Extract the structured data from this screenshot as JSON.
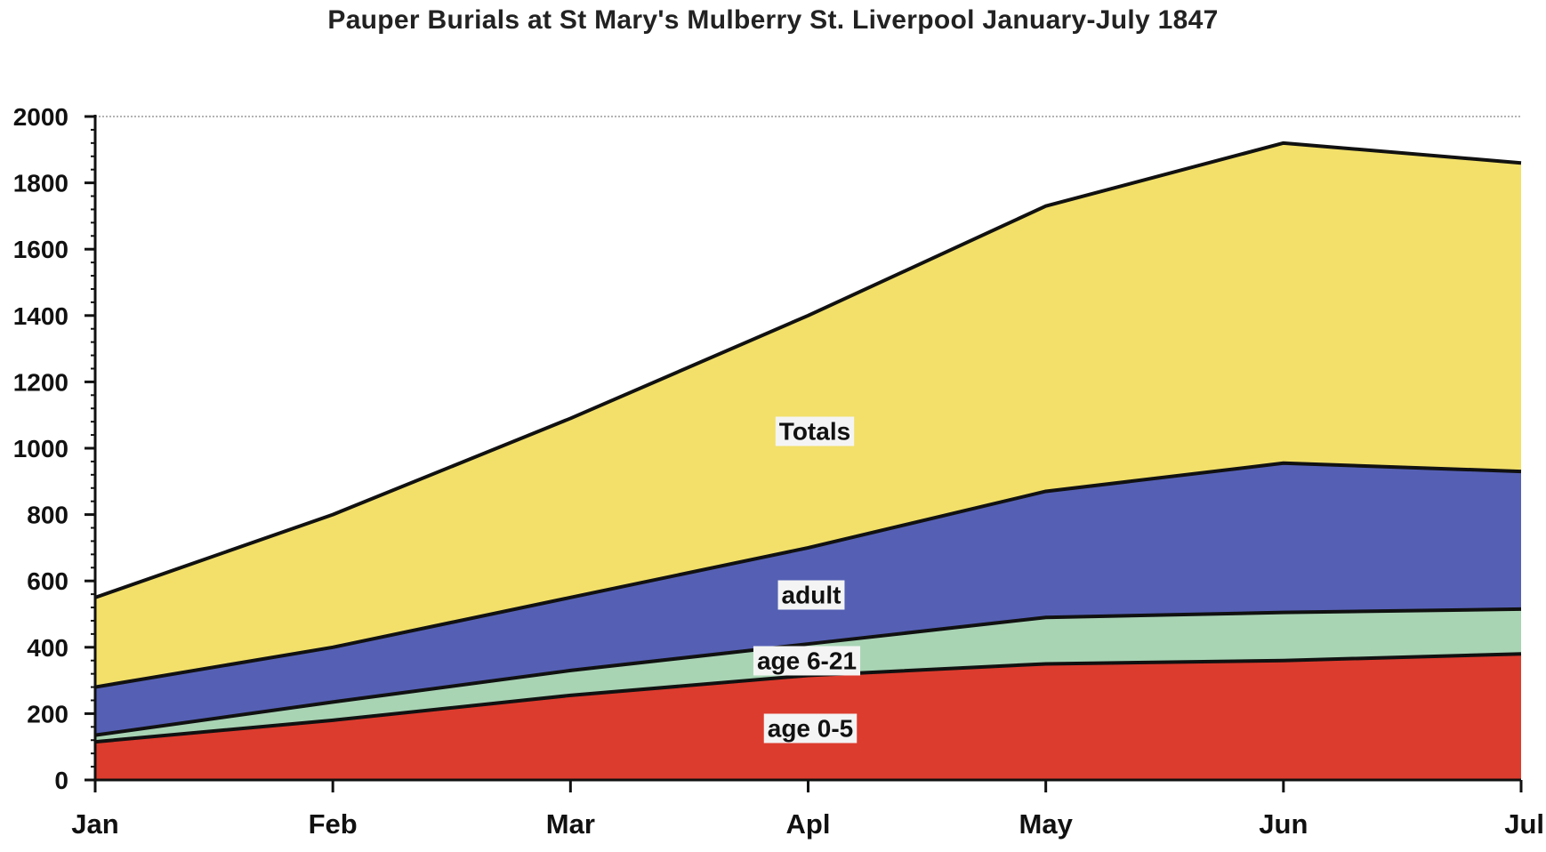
{
  "chart_data": {
    "type": "area",
    "stacked": false,
    "title": "Pauper Burials at St Mary's Mulberry St. Liverpool January-July 1847",
    "xlabel": "",
    "ylabel": "",
    "categories": [
      "Jan",
      "Feb",
      "Mar",
      "Apl",
      "May",
      "Jun",
      "Jul"
    ],
    "ylim": [
      0,
      2000
    ],
    "yticks": [
      0,
      200,
      400,
      600,
      800,
      1000,
      1200,
      1400,
      1600,
      1800,
      2000
    ],
    "grid": false,
    "legend": "none",
    "series": [
      {
        "name": "Totals",
        "color": "#f2e06a",
        "values": [
          550,
          800,
          1090,
          1400,
          1730,
          1920,
          1860
        ]
      },
      {
        "name": "adult",
        "color": "#5560b4",
        "values": [
          280,
          400,
          550,
          700,
          870,
          955,
          930
        ]
      },
      {
        "name": "age 6-21",
        "color": "#a8d4b4",
        "values": [
          135,
          235,
          330,
          410,
          490,
          505,
          515
        ]
      },
      {
        "name": "age 0-5",
        "color": "#dc3c2e",
        "values": [
          115,
          180,
          255,
          315,
          350,
          360,
          380
        ]
      }
    ]
  }
}
